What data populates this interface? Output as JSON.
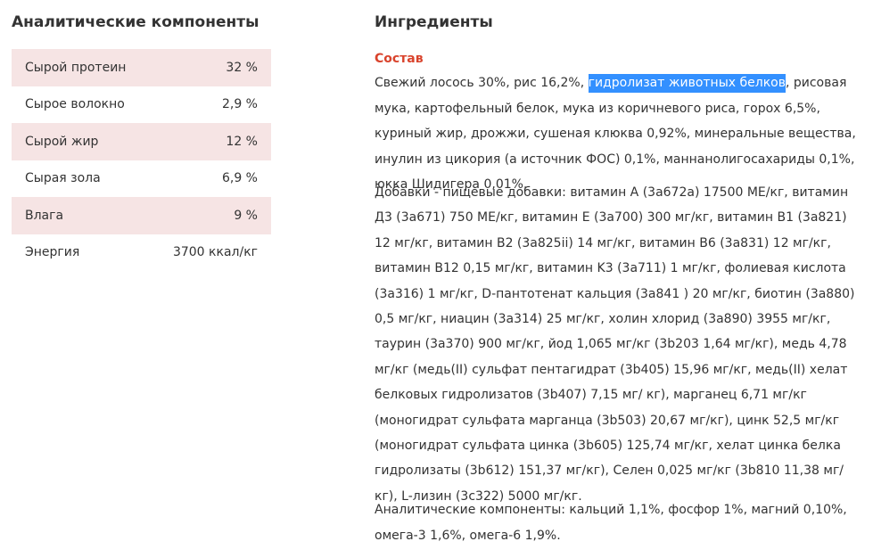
{
  "analytic": {
    "title": "Аналитические компоненты",
    "rows": [
      {
        "label": "Сырой протеин",
        "value": "32 %"
      },
      {
        "label": "Сырое волокно",
        "value": "2,9 %"
      },
      {
        "label": "Сырой жир",
        "value": "12 %"
      },
      {
        "label": "Сырая зола",
        "value": "6,9 %"
      },
      {
        "label": "Влага",
        "value": "9 %"
      },
      {
        "label": "Энергия",
        "value": "3700 ккал/кг"
      }
    ]
  },
  "ingredients": {
    "title": "Ингредиенты",
    "composition_heading": "Состав",
    "composition_before_highlight": "Свежий лосось 30%, рис 16,2%, ",
    "composition_highlight": "гидролизат животных белков",
    "composition_after_highlight": ", рисовая мука, картофельный белок, мука из коричневого риса, горох 6,5%, куриный жир, дрожжи, сушеная клюква 0,92%, минеральные вещества, инулин из цикория (а источник ФОС) 0,1%, маннанолигосахариды 0,1%, юкка Шидигера 0,01%.",
    "additives": "Добавки - пищевые добавки: витамин A (3a672a) 17500 МЕ/кг, витамин Д3 (3a671) 750 МЕ/кг, витамин E (3a700) 300 мг/кг, витамин B1 (3a821) 12 мг/кг, витамин B2 (3a825ii) 14 мг/кг, витамин B6 (3a831) 12 мг/кг, витамин B12 0,15 мг/кг, витамин K3 (3a711) 1 мг/кг, фолиевая кислота (3a316) 1 мг/кг, D-пантотенат кальция (3a841 ) 20 мг/кг, биотин (3a880) 0,5 мг/кг, ниацин (3a314) 25 мг/кг, холин хлорид (3a890) 3955 мг/кг, таурин (3a370) 900 мг/кг, йод 1,065 мг/кг (3b203 1,64 мг/кг), медь 4,78 мг/кг (медь(II) сульфат пентагидрат (3b405) 15,96 мг/кг, медь(II) хелат белковых гидролизатов (3b407) 7,15 мг/ кг), марганец 6,71 мг/кг (моногидрат сульфата марганца (3b503) 20,67 мг/кг), цинк 52,5 мг/кг (моногидрат сульфата цинка (3b605) 125,74 мг/кг, хелат цинка белка гидролизаты (3b612) 151,37 мг/кг), Селен 0,025 мг/кг (3b810 11,38 мг/кг), L-лизин (3c322) 5000 мг/кг.",
    "analytic_extra": "Аналитические компоненты: кальций 1,1%, фосфор 1%, магний 0,10%, омега-3 1,6%, омега-6 1,9%."
  },
  "colors": {
    "row_shade": "#f6e4e4",
    "heading_accent": "#d9432c",
    "selection": "#3390ff"
  }
}
